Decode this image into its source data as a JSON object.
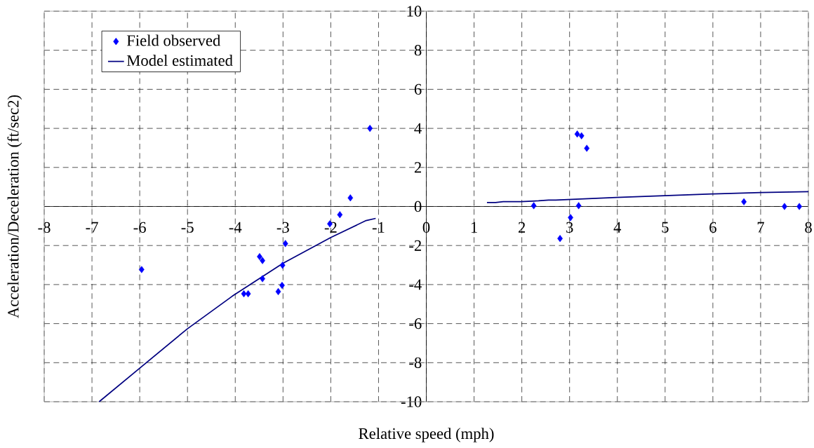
{
  "chart_data": {
    "type": "scatter",
    "xlabel": "Relative speed (mph)",
    "ylabel": "Acceleration/Deceleration (ft/sec2)",
    "xlim": [
      -8,
      8
    ],
    "ylim": [
      -10,
      10
    ],
    "xticks": [
      -8,
      -7,
      -6,
      -5,
      -4,
      -3,
      -2,
      -1,
      0,
      1,
      2,
      3,
      4,
      5,
      6,
      7,
      8
    ],
    "yticks": [
      -10,
      -8,
      -6,
      -4,
      -2,
      0,
      2,
      4,
      6,
      8,
      10
    ],
    "grid": true,
    "legend": "top left",
    "series": [
      {
        "name": "Field observed",
        "type": "scatter",
        "color": "#0000ff",
        "marker": "diamond",
        "x": [
          -5.96,
          -3.82,
          -3.73,
          -3.49,
          -3.43,
          -3.43,
          -3.1,
          -3.02,
          -3.01,
          -2.95,
          -2.02,
          -1.81,
          -1.59,
          -1.18,
          2.25,
          2.8,
          3.02,
          3.16,
          3.19,
          3.25,
          3.36,
          6.65,
          7.5,
          7.81
        ],
        "values": [
          -3.23,
          -4.47,
          -4.47,
          -2.57,
          -2.77,
          -3.7,
          -4.36,
          -4.04,
          -3.01,
          -1.9,
          -0.89,
          -0.42,
          0.44,
          4.0,
          0.04,
          -1.64,
          -0.57,
          3.71,
          0.04,
          3.62,
          2.98,
          0.24,
          0,
          0
        ]
      },
      {
        "name": "Model estimated",
        "type": "line",
        "color": "#000080",
        "marker": "none",
        "x": [
          -6.85,
          -6,
          -5,
          -4.06,
          -3,
          -2,
          -1.26,
          -1.06,
          0,
          1.27,
          1.45,
          1.61,
          1.98,
          2.35,
          2.56,
          2.71,
          3.98,
          4.98,
          5.98,
          7.0,
          8
        ],
        "values": [
          -10,
          -8.28,
          -6.26,
          -4.59,
          -2.91,
          -1.59,
          -0.72,
          -0.61,
          null,
          0.2,
          0.2,
          0.25,
          0.25,
          0.29,
          0.33,
          0.33,
          0.46,
          0.55,
          0.64,
          0.71,
          0.76
        ]
      }
    ]
  }
}
